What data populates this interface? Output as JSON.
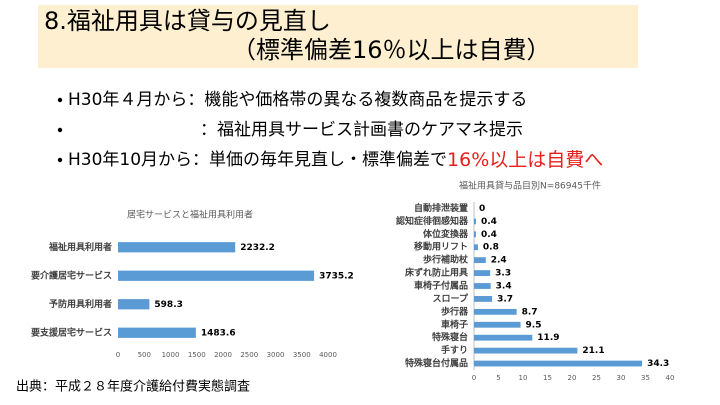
{
  "title": [
    "8.福祉用具は貸与の見直し",
    "（標準偏差16％以上は自費）"
  ],
  "bullets": [
    {
      "text": "H30年４月から：機能や価格帯の異なる複数商品を提示する"
    },
    {
      "text": "：福祉用具サービス計画書のケアマネ提示"
    },
    {
      "text": "H30年10月から：単価の毎年見直し・標準偏差で",
      "emphasis": "16%以上は自費へ",
      "emphasis_color": "#e8201c"
    }
  ],
  "source": "出典：平成２８年度介護給付費実態調査",
  "chart_data": [
    {
      "type": "bar",
      "orientation": "horizontal",
      "title": "居宅サービスと福祉用具利用者",
      "categories": [
        "福祉用具利用者",
        "要介護居宅サービス",
        "予防用具利用者",
        "要支援居宅サービス"
      ],
      "values": [
        2232.2,
        3735.2,
        598.3,
        1483.6
      ],
      "color": "#5b9bd5",
      "xlim": [
        0,
        4000
      ],
      "xticks": [
        0,
        500,
        1000,
        1500,
        2000,
        2500,
        3000,
        3500,
        4000
      ]
    },
    {
      "type": "bar",
      "orientation": "horizontal",
      "title": "福祉用具貸与品目別N=86945千件",
      "categories": [
        "自動排泄装置",
        "認知症徘徊感知器",
        "体位変換器",
        "移動用リフト",
        "歩行補助杖",
        "床ずれ防止用具",
        "車椅子付属品",
        "スロープ",
        "歩行器",
        "車椅子",
        "特殊寝台",
        "手すり",
        "特殊寝台付属品"
      ],
      "values": [
        0,
        0.4,
        0.4,
        0.8,
        2.4,
        3.3,
        3.4,
        3.7,
        8.7,
        9.5,
        11.9,
        21.1,
        34.3
      ],
      "color": "#5b9bd5",
      "xlim": [
        0,
        40
      ],
      "xticks": [
        0,
        5,
        10,
        15,
        20,
        25,
        30,
        35,
        40
      ]
    }
  ]
}
